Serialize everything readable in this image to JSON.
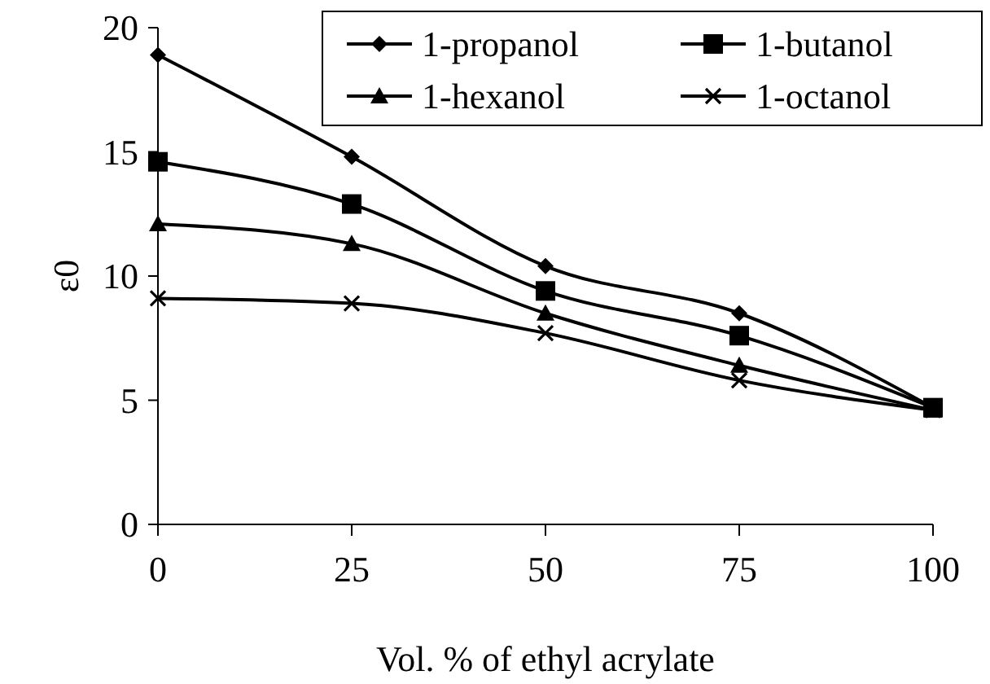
{
  "chart_data": {
    "type": "line",
    "xlabel": "Vol. % of ethyl acrylate",
    "ylabel": "ε0",
    "x": [
      0,
      25,
      50,
      75,
      100
    ],
    "xlim": [
      0,
      100
    ],
    "xticks": [
      0,
      25,
      50,
      75,
      100
    ],
    "ylim": [
      0,
      20
    ],
    "yticks": [
      0,
      5,
      10,
      15,
      20
    ],
    "grid": false,
    "legend": "top right",
    "line_style": "solid",
    "series": [
      {
        "name": "1-propanol",
        "color": "#000000",
        "marker": "diamond",
        "values": [
          18.9,
          14.8,
          10.4,
          8.5,
          4.7
        ]
      },
      {
        "name": "1-butanol",
        "color": "#000000",
        "marker": "square",
        "values": [
          14.6,
          12.9,
          9.4,
          7.6,
          4.7
        ]
      },
      {
        "name": "1-hexanol",
        "color": "#000000",
        "marker": "triangle",
        "values": [
          12.1,
          11.3,
          8.5,
          6.4,
          4.6
        ]
      },
      {
        "name": "1-octanol",
        "color": "#000000",
        "marker": "cross",
        "values": [
          9.1,
          8.9,
          7.7,
          5.8,
          4.6
        ]
      }
    ]
  }
}
